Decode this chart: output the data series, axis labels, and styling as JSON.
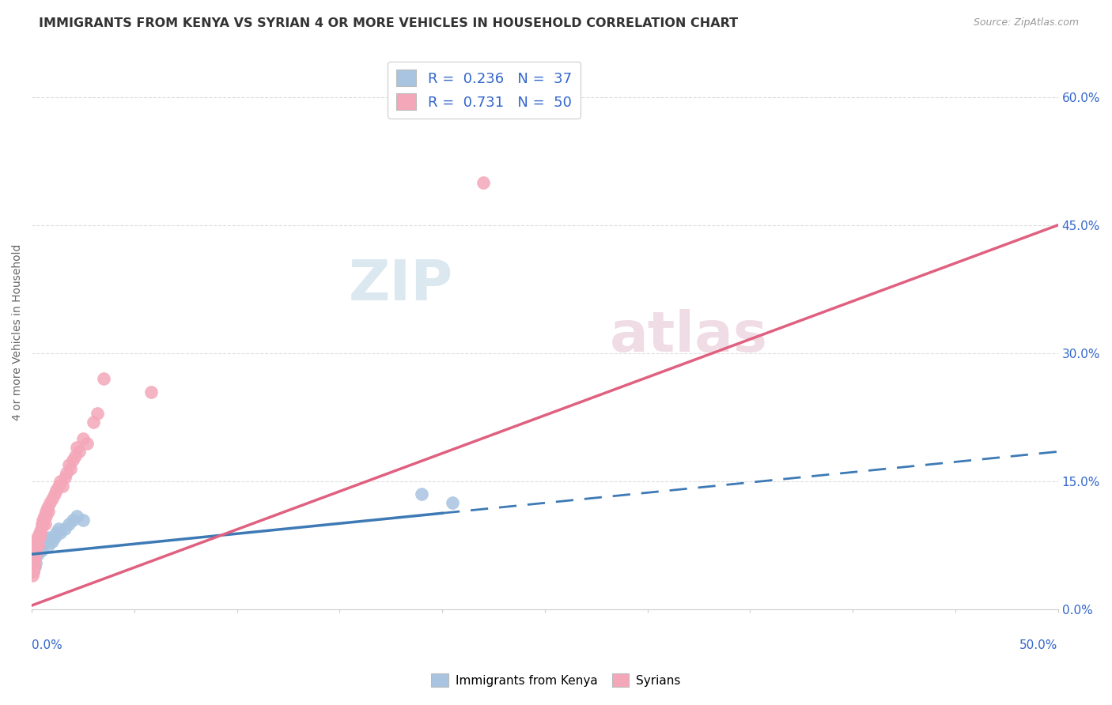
{
  "title": "IMMIGRANTS FROM KENYA VS SYRIAN 4 OR MORE VEHICLES IN HOUSEHOLD CORRELATION CHART",
  "source": "Source: ZipAtlas.com",
  "ylabel": "4 or more Vehicles in Household",
  "ytick_vals": [
    0.0,
    15.0,
    30.0,
    45.0,
    60.0
  ],
  "xlim": [
    0.0,
    50.0
  ],
  "ylim": [
    0.0,
    65.0
  ],
  "legend_kenya_R": "0.236",
  "legend_kenya_N": "37",
  "legend_syrian_R": "0.731",
  "legend_syrian_N": "50",
  "kenya_color": "#a8c4e0",
  "syrian_color": "#f4a7b9",
  "kenya_line_color": "#3d7ab5",
  "syrian_line_color": "#e06080",
  "background_color": "#ffffff",
  "kenya_line_x0": 0.0,
  "kenya_line_y0": 6.5,
  "kenya_line_x1": 50.0,
  "kenya_line_y1": 18.5,
  "kenya_solid_end_x": 20.0,
  "syrian_line_x0": 0.0,
  "syrian_line_y0": 0.5,
  "syrian_line_x1": 50.0,
  "syrian_line_y1": 45.0,
  "kenya_scatter_x": [
    0.05,
    0.08,
    0.1,
    0.12,
    0.15,
    0.18,
    0.2,
    0.25,
    0.3,
    0.35,
    0.4,
    0.45,
    0.5,
    0.55,
    0.6,
    0.7,
    0.8,
    0.9,
    1.0,
    1.1,
    1.2,
    1.3,
    1.4,
    1.6,
    1.8,
    2.0,
    2.2,
    2.5,
    0.06,
    0.09,
    0.13,
    0.22,
    0.28,
    19.0,
    20.5,
    0.38,
    0.48
  ],
  "kenya_scatter_y": [
    5.0,
    4.5,
    5.5,
    6.0,
    5.0,
    6.5,
    5.5,
    7.0,
    6.5,
    7.0,
    7.5,
    8.0,
    7.0,
    7.5,
    8.5,
    8.0,
    7.5,
    8.5,
    8.0,
    8.5,
    9.0,
    9.5,
    9.0,
    9.5,
    10.0,
    10.5,
    11.0,
    10.5,
    5.5,
    6.0,
    6.5,
    7.0,
    7.5,
    13.5,
    12.5,
    7.5,
    8.0
  ],
  "syrian_scatter_x": [
    0.05,
    0.08,
    0.1,
    0.12,
    0.15,
    0.18,
    0.2,
    0.25,
    0.3,
    0.35,
    0.4,
    0.45,
    0.5,
    0.55,
    0.6,
    0.65,
    0.7,
    0.75,
    0.8,
    0.9,
    1.0,
    1.1,
    1.2,
    1.3,
    1.4,
    1.5,
    1.6,
    1.7,
    1.8,
    1.9,
    2.0,
    2.1,
    2.2,
    2.3,
    2.5,
    2.7,
    3.0,
    3.2,
    3.5,
    0.06,
    0.09,
    0.13,
    0.22,
    0.28,
    5.8,
    22.0,
    0.38,
    0.42,
    0.52,
    0.68
  ],
  "syrian_scatter_y": [
    4.0,
    4.5,
    5.0,
    5.5,
    6.0,
    7.0,
    6.5,
    8.0,
    7.5,
    8.5,
    9.0,
    9.5,
    10.0,
    10.5,
    11.0,
    10.0,
    11.5,
    12.0,
    11.5,
    12.5,
    13.0,
    13.5,
    14.0,
    14.5,
    15.0,
    14.5,
    15.5,
    16.0,
    17.0,
    16.5,
    17.5,
    18.0,
    19.0,
    18.5,
    20.0,
    19.5,
    22.0,
    23.0,
    27.0,
    4.5,
    5.5,
    6.0,
    7.5,
    8.5,
    25.5,
    50.0,
    8.5,
    9.0,
    10.0,
    11.0
  ]
}
